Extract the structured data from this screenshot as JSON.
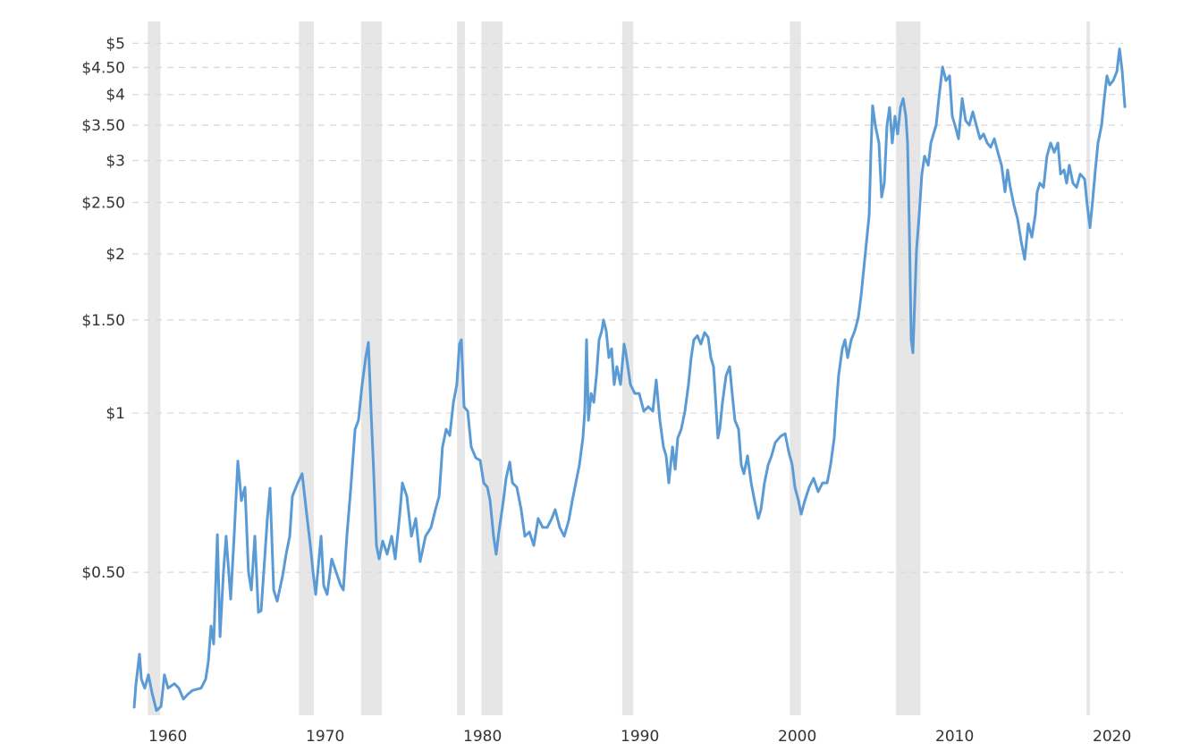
{
  "chart_data": {
    "type": "line",
    "title": "",
    "xlabel": "",
    "ylabel": "",
    "y_scale": "log",
    "ylim": [
      0.274,
      5.2
    ],
    "xlim": [
      1959.4,
      2022.4
    ],
    "grid": "horizontal dashed",
    "line_color": "#5b9bd5",
    "band_color": "#e6e6e6",
    "y_ticks": [
      {
        "value": 0.5,
        "label": "$0.50"
      },
      {
        "value": 1,
        "label": "$1"
      },
      {
        "value": 1.5,
        "label": "$1.50"
      },
      {
        "value": 2,
        "label": "$2"
      },
      {
        "value": 2.5,
        "label": "$2.50"
      },
      {
        "value": 3,
        "label": "$3"
      },
      {
        "value": 3.5,
        "label": "$3.50"
      },
      {
        "value": 4,
        "label": "$4"
      },
      {
        "value": 4.5,
        "label": "$4.50"
      },
      {
        "value": 5,
        "label": "$5"
      }
    ],
    "x_ticks": [
      {
        "value": 1960,
        "label": "1960"
      },
      {
        "value": 1970,
        "label": "1970"
      },
      {
        "value": 1980,
        "label": "1980"
      },
      {
        "value": 1990,
        "label": "1990"
      },
      {
        "value": 2000,
        "label": "2000"
      },
      {
        "value": 2010,
        "label": "2010"
      },
      {
        "value": 2020,
        "label": "2020"
      }
    ],
    "shaded_periods": [
      [
        1960.3,
        1961.1
      ],
      [
        1969.9,
        1970.85
      ],
      [
        1973.85,
        1975.17
      ],
      [
        1979.95,
        1980.45
      ],
      [
        1981.5,
        1982.85
      ],
      [
        1990.45,
        1991.15
      ],
      [
        2001.1,
        2001.8
      ],
      [
        2007.85,
        2009.4
      ],
      [
        2019.95,
        2020.17
      ]
    ],
    "series": [
      {
        "x": [
          1959.43,
          1959.55,
          1959.77,
          1959.89,
          1960.11,
          1960.34,
          1960.57,
          1960.85,
          1961.14,
          1961.36,
          1961.59,
          1961.99,
          1962.27,
          1962.56,
          1962.84,
          1963.13,
          1963.69,
          1963.98,
          1964.15,
          1964.32,
          1964.49,
          1964.72,
          1964.89,
          1965.11,
          1965.28,
          1965.57,
          1965.8,
          1966.02,
          1966.25,
          1966.48,
          1966.7,
          1966.88,
          1967.1,
          1967.33,
          1967.5,
          1967.73,
          1967.9,
          1968.07,
          1968.3,
          1968.52,
          1968.86,
          1969.09,
          1969.32,
          1969.49,
          1969.83,
          1970.11,
          1970.4,
          1970.63,
          1970.8,
          1970.97,
          1971.14,
          1971.31,
          1971.48,
          1971.7,
          1971.99,
          1972.27,
          1972.56,
          1972.73,
          1972.95,
          1973.18,
          1973.47,
          1973.69,
          1973.92,
          1974.15,
          1974.32,
          1974.49,
          1974.66,
          1974.83,
          1975.0,
          1975.23,
          1975.51,
          1975.8,
          1976.02,
          1976.31,
          1976.48,
          1976.76,
          1977.05,
          1977.33,
          1977.61,
          1977.95,
          1978.3,
          1978.58,
          1978.81,
          1979.03,
          1979.26,
          1979.49,
          1979.72,
          1979.94,
          1980.11,
          1980.23,
          1980.4,
          1980.63,
          1980.85,
          1981.14,
          1981.42,
          1981.65,
          1981.88,
          1982.05,
          1982.27,
          1982.44,
          1982.61,
          1982.9,
          1983.07,
          1983.3,
          1983.47,
          1983.75,
          1984.03,
          1984.26,
          1984.55,
          1984.83,
          1985.11,
          1985.4,
          1985.68,
          1985.97,
          1986.19,
          1986.48,
          1986.76,
          1987.05,
          1987.27,
          1987.5,
          1987.73,
          1987.95,
          1988.07,
          1988.18,
          1988.3,
          1988.47,
          1988.64,
          1988.81,
          1988.98,
          1989.15,
          1989.26,
          1989.43,
          1989.6,
          1989.77,
          1989.94,
          1990.11,
          1990.34,
          1990.57,
          1990.68,
          1990.97,
          1991.25,
          1991.53,
          1991.82,
          1992.1,
          1992.39,
          1992.61,
          1992.84,
          1993.07,
          1993.24,
          1993.41,
          1993.64,
          1993.81,
          1993.98,
          1994.2,
          1994.43,
          1994.66,
          1994.83,
          1995.0,
          1995.23,
          1995.45,
          1995.68,
          1995.91,
          1996.08,
          1996.25,
          1996.36,
          1996.53,
          1996.65,
          1996.82,
          1997.05,
          1997.27,
          1997.44,
          1997.61,
          1997.84,
          1998.01,
          1998.18,
          1998.41,
          1998.64,
          1998.86,
          1999.09,
          1999.26,
          1999.49,
          1999.72,
          1999.94,
          2000.17,
          2000.51,
          2000.8,
          2001.02,
          2001.25,
          2001.42,
          2001.65,
          2001.82,
          2002.05,
          2002.33,
          2002.61,
          2002.9,
          2003.18,
          2003.47,
          2003.69,
          2003.92,
          2004.03,
          2004.2,
          2004.43,
          2004.6,
          2004.77,
          2005.0,
          2005.23,
          2005.45,
          2005.63,
          2005.8,
          2005.97,
          2006.14,
          2006.25,
          2006.36,
          2006.53,
          2006.76,
          2006.93,
          2007.1,
          2007.27,
          2007.44,
          2007.61,
          2007.78,
          2007.95,
          2008.13,
          2008.3,
          2008.47,
          2008.58,
          2008.69,
          2008.81,
          2008.92,
          2009.03,
          2009.15,
          2009.32,
          2009.49,
          2009.66,
          2009.89,
          2010.06,
          2010.23,
          2010.4,
          2010.57,
          2010.8,
          2011.02,
          2011.25,
          2011.42,
          2011.59,
          2011.82,
          2012.05,
          2012.27,
          2012.5,
          2012.73,
          2012.95,
          2013.18,
          2013.41,
          2013.64,
          2013.86,
          2014.09,
          2014.32,
          2014.55,
          2014.77,
          2014.94,
          2015.11,
          2015.34,
          2015.57,
          2015.8,
          2016.02,
          2016.25,
          2016.48,
          2016.7,
          2016.82,
          2016.99,
          2017.22,
          2017.44,
          2017.67,
          2017.9,
          2018.13,
          2018.3,
          2018.52,
          2018.69,
          2018.86,
          2019.09,
          2019.32,
          2019.55,
          2019.83,
          2020.0,
          2020.17,
          2020.34,
          2020.51,
          2020.68,
          2020.91,
          2021.08,
          2021.25,
          2021.42,
          2021.65,
          2021.88,
          2022.05,
          2022.22,
          2022.39
        ],
        "y": [
          0.277,
          0.308,
          0.35,
          0.314,
          0.302,
          0.32,
          0.296,
          0.274,
          0.279,
          0.32,
          0.302,
          0.308,
          0.302,
          0.288,
          0.294,
          0.299,
          0.302,
          0.314,
          0.339,
          0.396,
          0.366,
          0.589,
          0.378,
          0.5,
          0.585,
          0.445,
          0.596,
          0.811,
          0.683,
          0.724,
          0.5,
          0.463,
          0.585,
          0.42,
          0.423,
          0.53,
          0.632,
          0.721,
          0.463,
          0.441,
          0.491,
          0.541,
          0.585,
          0.696,
          0.738,
          0.768,
          0.644,
          0.562,
          0.5,
          0.454,
          0.516,
          0.585,
          0.472,
          0.454,
          0.53,
          0.5,
          0.472,
          0.463,
          0.585,
          0.71,
          0.932,
          0.969,
          1.132,
          1.273,
          1.36,
          1.008,
          0.768,
          0.562,
          0.53,
          0.573,
          0.541,
          0.585,
          0.53,
          0.644,
          0.738,
          0.696,
          0.585,
          0.632,
          0.524,
          0.585,
          0.608,
          0.657,
          0.696,
          0.863,
          0.932,
          0.907,
          1.048,
          1.132,
          1.35,
          1.376,
          1.028,
          1.008,
          0.863,
          0.823,
          0.814,
          0.738,
          0.724,
          0.683,
          0.585,
          0.541,
          0.596,
          0.683,
          0.753,
          0.808,
          0.738,
          0.724,
          0.657,
          0.585,
          0.596,
          0.562,
          0.632,
          0.608,
          0.608,
          0.632,
          0.657,
          0.608,
          0.585,
          0.627,
          0.683,
          0.738,
          0.798,
          0.897,
          1.008,
          1.376,
          0.969,
          1.089,
          1.048,
          1.178,
          1.376,
          1.43,
          1.5,
          1.43,
          1.273,
          1.323,
          1.132,
          1.224,
          1.132,
          1.35,
          1.298,
          1.132,
          1.089,
          1.089,
          1.008,
          1.028,
          1.008,
          1.155,
          0.969,
          0.863,
          0.83,
          0.738,
          0.863,
          0.783,
          0.897,
          0.932,
          1.008,
          1.132,
          1.273,
          1.376,
          1.4,
          1.35,
          1.42,
          1.39,
          1.273,
          1.224,
          1.089,
          0.897,
          0.932,
          1.048,
          1.178,
          1.224,
          1.089,
          0.969,
          0.932,
          0.798,
          0.768,
          0.83,
          0.738,
          0.683,
          0.632,
          0.657,
          0.738,
          0.798,
          0.83,
          0.879,
          0.904,
          0.914,
          0.846,
          0.798,
          0.724,
          0.683,
          0.644,
          0.683,
          0.724,
          0.753,
          0.71,
          0.738,
          0.738,
          0.798,
          0.897,
          1.008,
          1.178,
          1.323,
          1.376,
          1.273,
          1.376,
          1.43,
          1.516,
          1.671,
          1.878,
          2.11,
          2.37,
          3.11,
          3.81,
          3.5,
          3.24,
          2.56,
          2.72,
          3.5,
          3.78,
          3.24,
          3.64,
          3.37,
          3.78,
          3.93,
          3.64,
          3.24,
          2.28,
          1.376,
          1.3,
          1.607,
          2.03,
          2.37,
          2.83,
          3.06,
          2.94,
          3.24,
          3.37,
          3.5,
          3.93,
          4.51,
          4.25,
          4.34,
          3.64,
          3.5,
          3.3,
          3.93,
          3.57,
          3.5,
          3.71,
          3.5,
          3.3,
          3.37,
          3.24,
          3.18,
          3.3,
          3.11,
          2.94,
          2.62,
          2.88,
          2.67,
          2.47,
          2.33,
          2.11,
          1.952,
          2.28,
          2.15,
          2.37,
          2.62,
          2.72,
          2.67,
          3.06,
          3.24,
          3.11,
          3.24,
          2.83,
          2.88,
          2.72,
          2.94,
          2.72,
          2.67,
          2.83,
          2.77,
          2.47,
          2.24,
          2.52,
          2.88,
          3.24,
          3.5,
          3.93,
          4.34,
          4.17,
          4.25,
          4.42,
          4.88,
          4.42,
          3.78
        ]
      }
    ]
  }
}
